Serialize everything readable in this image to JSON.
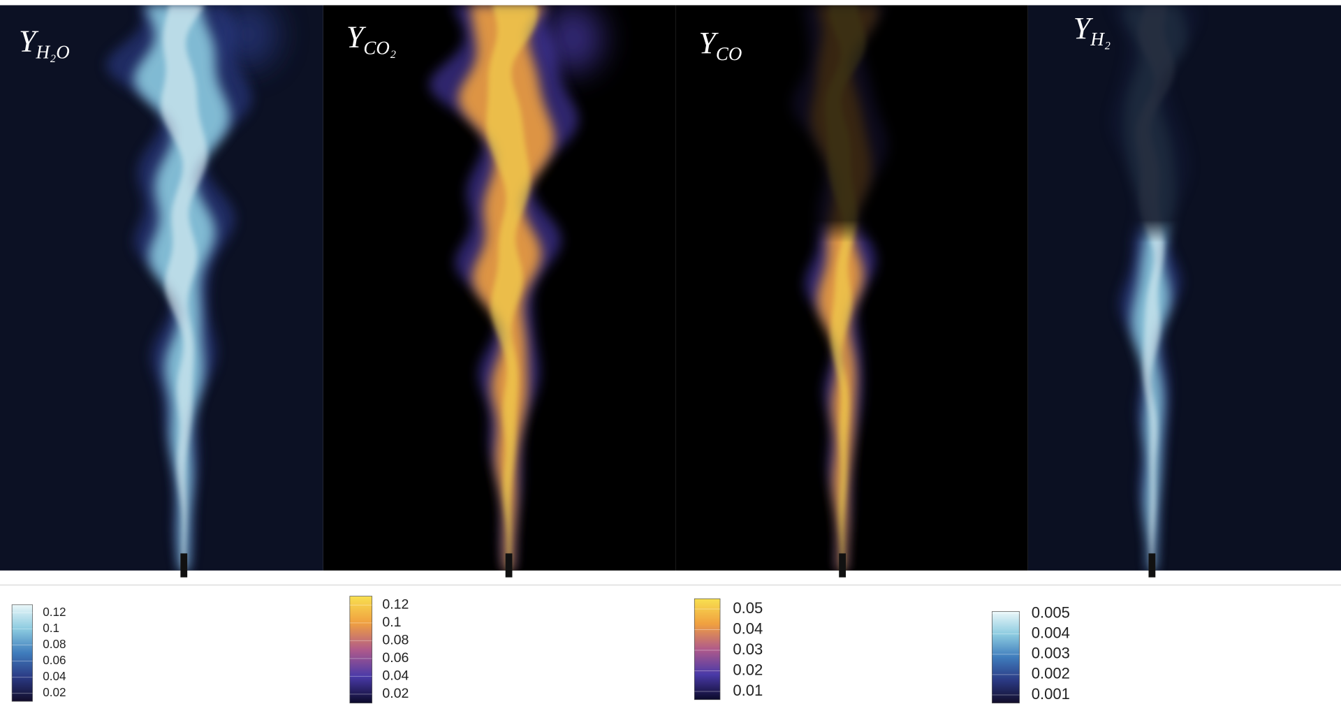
{
  "panels": [
    {
      "label": {
        "symbol": "Y",
        "subscript": "H₂O"
      },
      "background": "#0c1124",
      "colormap": [
        "#120d2a",
        "#2b3a84",
        "#3f7cbc",
        "#8ccbe0",
        "#eaf7f9"
      ],
      "colorbar": {
        "lim": [
          0.01,
          0.13
        ],
        "ticks": [
          0.12,
          0.1,
          0.08,
          0.06,
          0.04,
          0.02
        ]
      }
    },
    {
      "label": {
        "symbol": "Y",
        "subscript": "CO₂"
      },
      "background": "#000000",
      "colormap": [
        "#0b0a2a",
        "#4a3aa8",
        "#b05a8a",
        "#f0a040",
        "#f8e050"
      ],
      "colorbar": {
        "lim": [
          0.01,
          0.13
        ],
        "ticks": [
          0.12,
          0.1,
          0.08,
          0.06,
          0.04,
          0.02
        ]
      }
    },
    {
      "label": {
        "symbol": "Y",
        "subscript": "CO"
      },
      "background": "#000000",
      "colormap": [
        "#0b0a2a",
        "#4a3aa8",
        "#b05a8a",
        "#f0a040",
        "#f8e050"
      ],
      "colorbar": {
        "lim": [
          0.006,
          0.055
        ],
        "ticks": [
          0.05,
          0.04,
          0.03,
          0.02,
          0.01
        ]
      }
    },
    {
      "label": {
        "symbol": "Y",
        "subscript": "H₂"
      },
      "background": "#0b1022",
      "colormap": [
        "#120d2a",
        "#2b3a84",
        "#3f7cbc",
        "#8ccbe0",
        "#eaf7f9"
      ],
      "colorbar": {
        "lim": [
          0.0006,
          0.0051
        ],
        "ticks": [
          0.005,
          0.004,
          0.003,
          0.002,
          0.001
        ]
      }
    }
  ]
}
